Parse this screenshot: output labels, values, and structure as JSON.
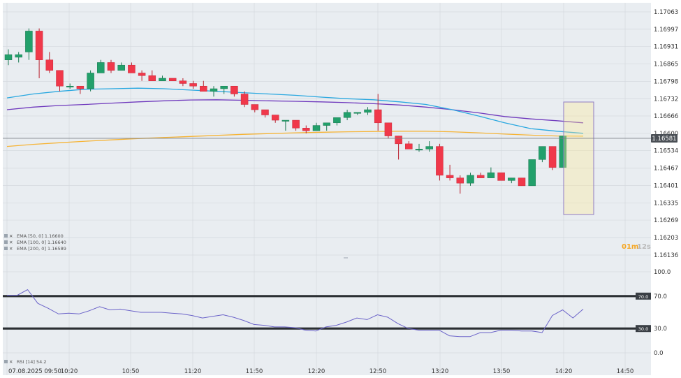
{
  "colors": {
    "background": "#e9edf1",
    "grid": "#d4d9de",
    "up": "#22a06b",
    "down": "#f0384a",
    "ema50": "#2aa8e0",
    "ema100": "#6f39bd",
    "ema200": "#f6b436",
    "rsi": "#6b63c9"
  },
  "chart_data": [
    {
      "type": "candlestick",
      "y_ticks": [
        "1.17063",
        "1.16997",
        "1.16931",
        "1.16865",
        "1.16798",
        "1.16732",
        "1.16666",
        "1.16600",
        "1.16534",
        "1.16467",
        "1.16401",
        "1.16335",
        "1.16269",
        "1.16203",
        "1.16136"
      ],
      "x_ticks": [
        "07.08.2025  09:50",
        "10:20",
        "10:50",
        "11:20",
        "11:50",
        "12:20",
        "12:50",
        "13:20",
        "13:50",
        "14:20",
        "14:50"
      ],
      "ylim": [
        1.16136,
        1.17063
      ],
      "current_price": "1.16581",
      "countdown": {
        "minutes": "01m",
        "seconds": "12s"
      },
      "candles": [
        {
          "o": 1.1688,
          "h": 1.1692,
          "l": 1.1686,
          "c": 1.169
        },
        {
          "o": 1.1689,
          "h": 1.1691,
          "l": 1.1687,
          "c": 1.169
        },
        {
          "o": 1.1691,
          "h": 1.17,
          "l": 1.1688,
          "c": 1.1699
        },
        {
          "o": 1.1699,
          "h": 1.17,
          "l": 1.1681,
          "c": 1.1688
        },
        {
          "o": 1.1688,
          "h": 1.1691,
          "l": 1.1683,
          "c": 1.1684
        },
        {
          "o": 1.1684,
          "h": 1.1684,
          "l": 1.1676,
          "c": 1.1678
        },
        {
          "o": 1.1678,
          "h": 1.1679,
          "l": 1.1677,
          "c": 1.1678
        },
        {
          "o": 1.1678,
          "h": 1.1678,
          "l": 1.1675,
          "c": 1.1677
        },
        {
          "o": 1.1677,
          "h": 1.1684,
          "l": 1.1676,
          "c": 1.1683
        },
        {
          "o": 1.1683,
          "h": 1.1688,
          "l": 1.1683,
          "c": 1.1687
        },
        {
          "o": 1.1687,
          "h": 1.1688,
          "l": 1.1683,
          "c": 1.1684
        },
        {
          "o": 1.1684,
          "h": 1.1687,
          "l": 1.1684,
          "c": 1.1686
        },
        {
          "o": 1.1686,
          "h": 1.1687,
          "l": 1.1683,
          "c": 1.1683
        },
        {
          "o": 1.1683,
          "h": 1.1684,
          "l": 1.168,
          "c": 1.1682
        },
        {
          "o": 1.1682,
          "h": 1.1684,
          "l": 1.168,
          "c": 1.168
        },
        {
          "o": 1.168,
          "h": 1.1682,
          "l": 1.168,
          "c": 1.1681
        },
        {
          "o": 1.1681,
          "h": 1.1681,
          "l": 1.168,
          "c": 1.168
        },
        {
          "o": 1.168,
          "h": 1.1681,
          "l": 1.1678,
          "c": 1.1679
        },
        {
          "o": 1.1679,
          "h": 1.168,
          "l": 1.1677,
          "c": 1.1678
        },
        {
          "o": 1.1678,
          "h": 1.168,
          "l": 1.1676,
          "c": 1.1676
        },
        {
          "o": 1.1676,
          "h": 1.1678,
          "l": 1.1674,
          "c": 1.1677
        },
        {
          "o": 1.1677,
          "h": 1.1678,
          "l": 1.1675,
          "c": 1.1678
        },
        {
          "o": 1.1678,
          "h": 1.1678,
          "l": 1.1674,
          "c": 1.1675
        },
        {
          "o": 1.1675,
          "h": 1.1676,
          "l": 1.167,
          "c": 1.1671
        },
        {
          "o": 1.1671,
          "h": 1.1671,
          "l": 1.1668,
          "c": 1.1669
        },
        {
          "o": 1.1669,
          "h": 1.1669,
          "l": 1.1666,
          "c": 1.1667
        },
        {
          "o": 1.1667,
          "h": 1.1667,
          "l": 1.1664,
          "c": 1.1665
        },
        {
          "o": 1.1665,
          "h": 1.1665,
          "l": 1.1661,
          "c": 1.1665
        },
        {
          "o": 1.1665,
          "h": 1.1665,
          "l": 1.1661,
          "c": 1.1662
        },
        {
          "o": 1.1662,
          "h": 1.1663,
          "l": 1.166,
          "c": 1.1661
        },
        {
          "o": 1.1661,
          "h": 1.1664,
          "l": 1.1661,
          "c": 1.1663
        },
        {
          "o": 1.1663,
          "h": 1.1664,
          "l": 1.1661,
          "c": 1.1664
        },
        {
          "o": 1.1664,
          "h": 1.1666,
          "l": 1.1663,
          "c": 1.1666
        },
        {
          "o": 1.1666,
          "h": 1.1669,
          "l": 1.1665,
          "c": 1.1668
        },
        {
          "o": 1.1668,
          "h": 1.1668,
          "l": 1.1667,
          "c": 1.1668
        },
        {
          "o": 1.1668,
          "h": 1.167,
          "l": 1.1667,
          "c": 1.1669
        },
        {
          "o": 1.1669,
          "h": 1.1675,
          "l": 1.1661,
          "c": 1.1664
        },
        {
          "o": 1.1664,
          "h": 1.1664,
          "l": 1.1658,
          "c": 1.1659
        },
        {
          "o": 1.1659,
          "h": 1.1659,
          "l": 1.165,
          "c": 1.1656
        },
        {
          "o": 1.1656,
          "h": 1.1657,
          "l": 1.1654,
          "c": 1.1654
        },
        {
          "o": 1.1654,
          "h": 1.1656,
          "l": 1.1653,
          "c": 1.1654
        },
        {
          "o": 1.1654,
          "h": 1.1657,
          "l": 1.1653,
          "c": 1.1655
        },
        {
          "o": 1.1655,
          "h": 1.1656,
          "l": 1.1642,
          "c": 1.1644
        },
        {
          "o": 1.1644,
          "h": 1.1648,
          "l": 1.1642,
          "c": 1.1643
        },
        {
          "o": 1.1643,
          "h": 1.1644,
          "l": 1.1637,
          "c": 1.1641
        },
        {
          "o": 1.1641,
          "h": 1.1645,
          "l": 1.164,
          "c": 1.1644
        },
        {
          "o": 1.1644,
          "h": 1.1645,
          "l": 1.1643,
          "c": 1.1643
        },
        {
          "o": 1.1643,
          "h": 1.1647,
          "l": 1.1643,
          "c": 1.1645
        },
        {
          "o": 1.1645,
          "h": 1.1645,
          "l": 1.1642,
          "c": 1.1642
        },
        {
          "o": 1.1642,
          "h": 1.1643,
          "l": 1.1641,
          "c": 1.1643
        },
        {
          "o": 1.1643,
          "h": 1.1643,
          "l": 1.164,
          "c": 1.164
        },
        {
          "o": 1.164,
          "h": 1.165,
          "l": 1.164,
          "c": 1.165
        },
        {
          "o": 1.165,
          "h": 1.1655,
          "l": 1.1649,
          "c": 1.1655
        },
        {
          "o": 1.1655,
          "h": 1.1655,
          "l": 1.1646,
          "c": 1.1647
        },
        {
          "o": 1.1647,
          "h": 1.1659,
          "l": 1.1647,
          "c": 1.1659
        }
      ],
      "ema50": [
        1.16735,
        1.1675,
        1.1676,
        1.16768,
        1.1677,
        1.16772,
        1.1677,
        1.16765,
        1.1676,
        1.16755,
        1.1675,
        1.16745,
        1.16738,
        1.16732,
        1.16728,
        1.1672,
        1.1671,
        1.1669,
        1.16666,
        1.1664,
        1.16618,
        1.16608,
        1.166
      ],
      "ema100": [
        1.1669,
        1.167,
        1.16706,
        1.1671,
        1.16715,
        1.1672,
        1.16724,
        1.16727,
        1.16728,
        1.16726,
        1.16724,
        1.16722,
        1.1672,
        1.16717,
        1.16713,
        1.16708,
        1.167,
        1.1669,
        1.16678,
        1.16664,
        1.16655,
        1.16648,
        1.1664
      ],
      "ema200": [
        1.1655,
        1.16558,
        1.16564,
        1.1657,
        1.16575,
        1.1658,
        1.16584,
        1.16588,
        1.16592,
        1.16596,
        1.16599,
        1.16602,
        1.16604,
        1.16606,
        1.16607,
        1.16608,
        1.16608,
        1.16606,
        1.16602,
        1.16597,
        1.16593,
        1.1659,
        1.16589
      ],
      "legend": [
        {
          "label": "EMA [50, 0]",
          "value": "1.16600"
        },
        {
          "label": "EMA [100, 0]",
          "value": "1.16640"
        },
        {
          "label": "EMA [200, 0]",
          "value": "1.16589"
        }
      ]
    },
    {
      "type": "line",
      "name": "RSI [14]",
      "legend_value": "54.2",
      "y_ticks": [
        "100.0",
        "70.0",
        "30.0",
        "0.0"
      ],
      "ylim": [
        0,
        100
      ],
      "levels": [
        "70.0",
        "30.0"
      ],
      "values": [
        71,
        71,
        78,
        61,
        55,
        48,
        49,
        48,
        52,
        57,
        53,
        54,
        52,
        50,
        50,
        50,
        49,
        48,
        46,
        43,
        45,
        47,
        44,
        40,
        35,
        34,
        32,
        32,
        31,
        28,
        27,
        32,
        34,
        38,
        43,
        41,
        47,
        44,
        36,
        30,
        28,
        28,
        28,
        21,
        20,
        20,
        25,
        25,
        28,
        28,
        27,
        27,
        25,
        46,
        53,
        43,
        54
      ]
    }
  ]
}
